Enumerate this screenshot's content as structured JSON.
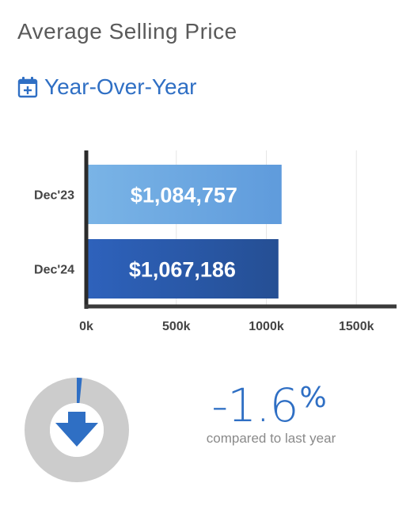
{
  "header": {
    "title": "Average Selling Price",
    "subtitle": "Year-Over-Year"
  },
  "icons": {
    "subtitle_icon": "calendar-plus-icon",
    "change_icon": "arrow-down-icon"
  },
  "colors": {
    "accent": "#2f6fc4",
    "bar_dec23": "#6aa6e0",
    "bar_dec24": "#2a5aa8",
    "donut_track": "#cccccc",
    "donut_fill": "#2f6fc4"
  },
  "chart_data": {
    "type": "bar",
    "orientation": "horizontal",
    "categories": [
      "Dec'23",
      "Dec'24"
    ],
    "values": [
      1084757,
      1067186
    ],
    "value_labels": [
      "$1,084,757",
      "$1,067,186"
    ],
    "xlim": [
      0,
      1600000
    ],
    "xticks": [
      0,
      500000,
      1000000,
      1500000
    ],
    "xtick_labels": [
      "0k",
      "500k",
      "1000k",
      "1500k"
    ],
    "grid": true,
    "title": "",
    "xlabel": "",
    "ylabel": ""
  },
  "change": {
    "value": "-1.6",
    "sign": "%",
    "caption": "compared to last year",
    "fraction": 0.016
  }
}
